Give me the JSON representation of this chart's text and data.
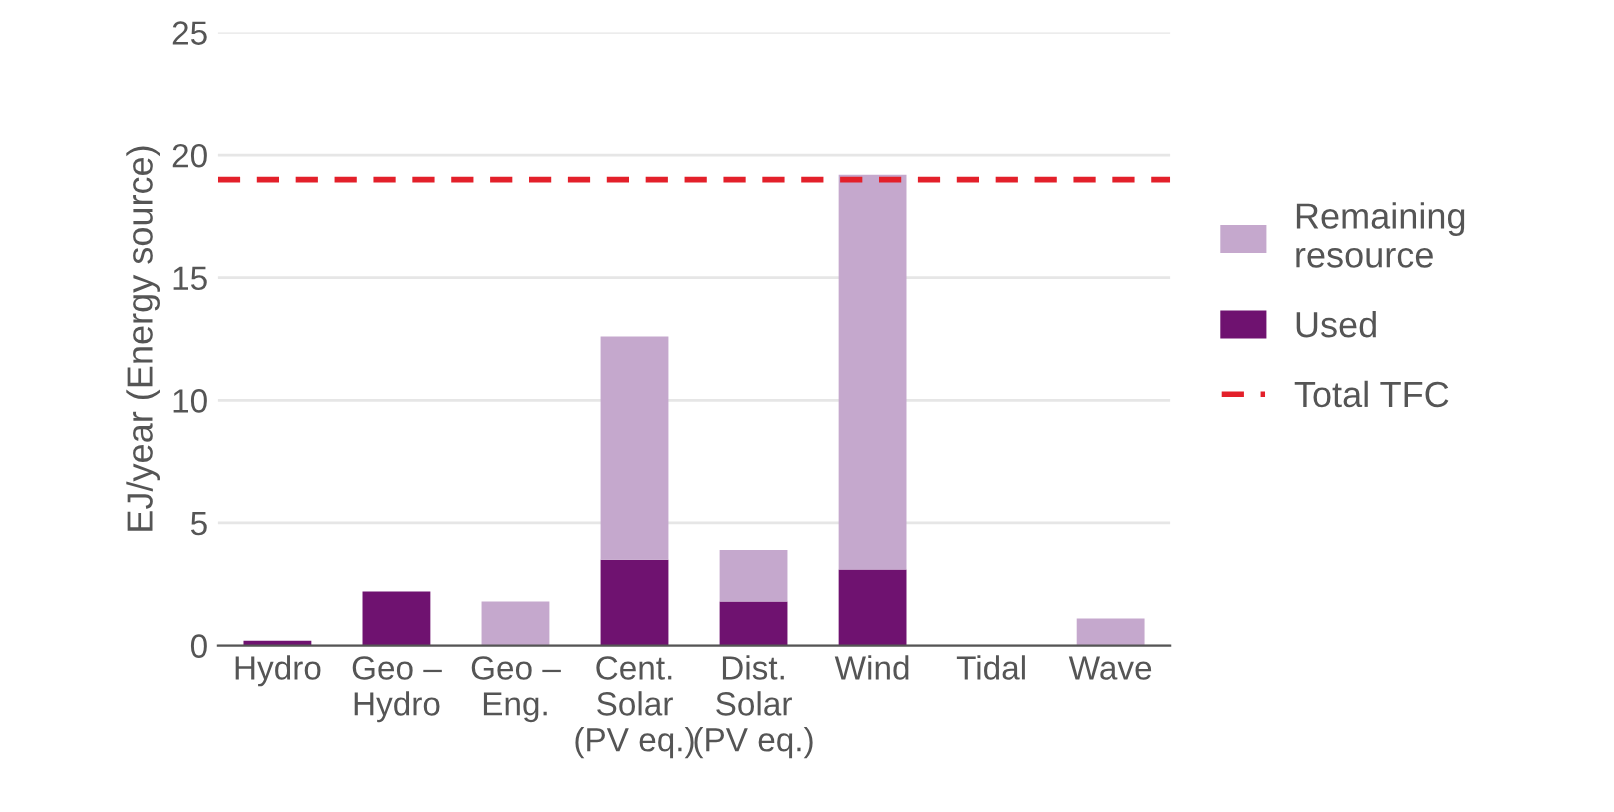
{
  "chart_data": {
    "type": "bar",
    "ylabel": "EJ/year (Energy source)",
    "categories": [
      "Hydro",
      "Geo –\nHydro",
      "Geo –\nEng.",
      "Cent.\nSolar\n(PV eq.)",
      "Dist.\nSolar\n(PV eq.)",
      "Wind",
      "Tidal",
      "Wave"
    ],
    "stacked": true,
    "series": [
      {
        "name": "Used",
        "color": "#6f1270",
        "values": [
          0.2,
          2.2,
          null,
          3.5,
          1.8,
          3.1,
          null,
          null
        ]
      },
      {
        "name": "Remaining\nresource",
        "color": "#c5a8cd",
        "values": [
          null,
          null,
          1.8,
          9.1,
          2.1,
          16.1,
          null,
          1.1
        ]
      }
    ],
    "ref_lines": [
      {
        "axis": "y",
        "value": 19,
        "label": "Total TFC",
        "color": "#e3202a",
        "line_style": "dashed"
      }
    ],
    "ylim": [
      0,
      25
    ],
    "yticks": [
      0,
      5,
      10,
      15,
      20,
      25
    ],
    "grid": "y",
    "legend": "right"
  }
}
